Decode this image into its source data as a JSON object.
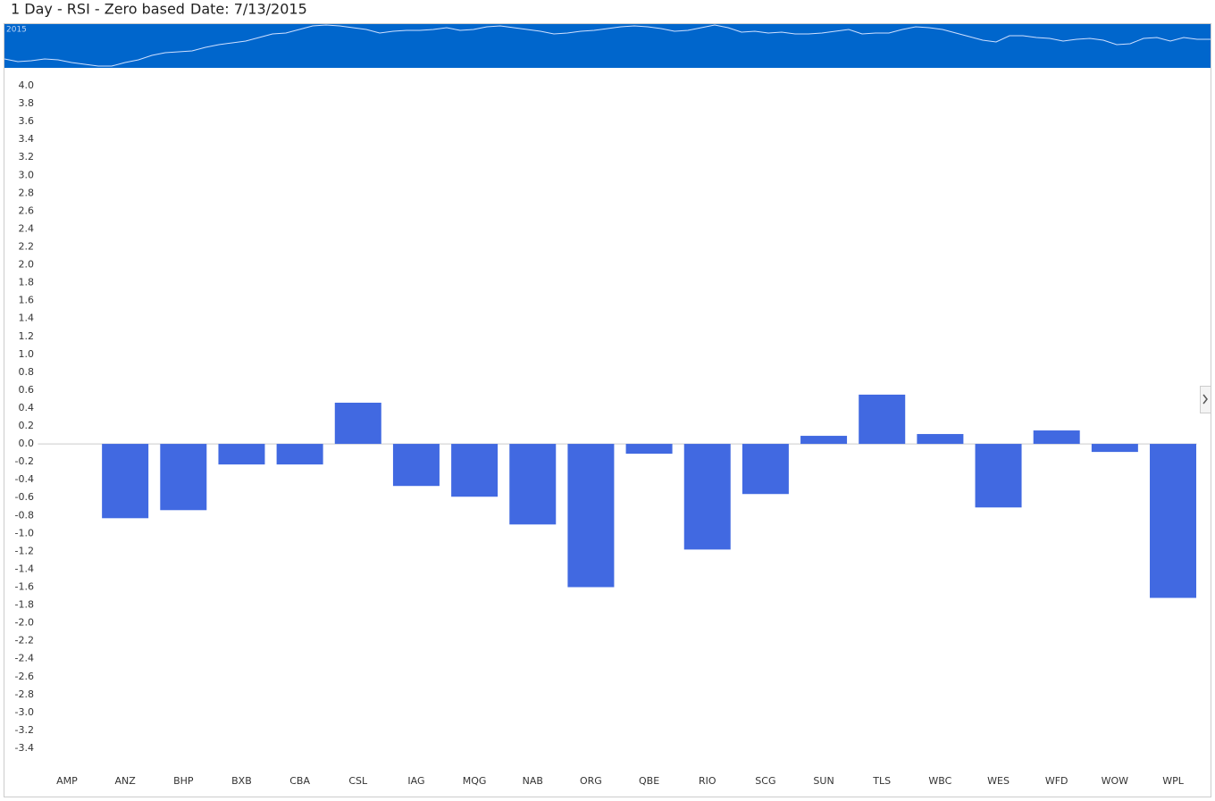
{
  "chart_data": {
    "type": "bar",
    "title": "1 Day - RSI - Zero based",
    "date_label": "Date: 7/13/2015",
    "navigator_label": "2015",
    "categories": [
      "AMP",
      "ANZ",
      "BHP",
      "BXB",
      "CBA",
      "CSL",
      "IAG",
      "MQG",
      "NAB",
      "ORG",
      "QBE",
      "RIO",
      "SCG",
      "SUN",
      "TLS",
      "WBC",
      "WES",
      "WFD",
      "WOW",
      "WPL"
    ],
    "values": [
      0,
      -0.83,
      -0.74,
      -0.23,
      -0.23,
      0.46,
      -0.47,
      -0.59,
      -0.9,
      -1.6,
      -0.11,
      -1.18,
      -0.56,
      0.09,
      0.55,
      0.11,
      -0.71,
      0.15,
      -0.09,
      -1.72
    ],
    "color": "#4169e1",
    "ylim": [
      -3.4,
      4.0
    ],
    "yticks": [
      {
        "value": 4,
        "label": "4.0"
      },
      3.8,
      3.6,
      3.4,
      3.2,
      {
        "value": 3,
        "label": "3.0"
      },
      2.8,
      2.6,
      2.4,
      2.2,
      {
        "value": 2,
        "label": "2.0"
      },
      1.8,
      1.6,
      1.4,
      1.2,
      {
        "value": 1,
        "label": "1.0"
      },
      0.8,
      0.6,
      0.4,
      0.2,
      {
        "value": 0,
        "label": "0.0"
      },
      -0.2,
      -0.4,
      -0.6,
      -0.8,
      {
        "value": -1,
        "label": "-1.0"
      },
      -1.2,
      -1.4,
      -1.6,
      -1.8,
      {
        "value": -2,
        "label": "-2.0"
      },
      -2.2,
      -2.4,
      -2.6,
      -2.8,
      {
        "value": -3,
        "label": "-3.0"
      },
      -3.2,
      -3.4
    ],
    "grid": false
  }
}
